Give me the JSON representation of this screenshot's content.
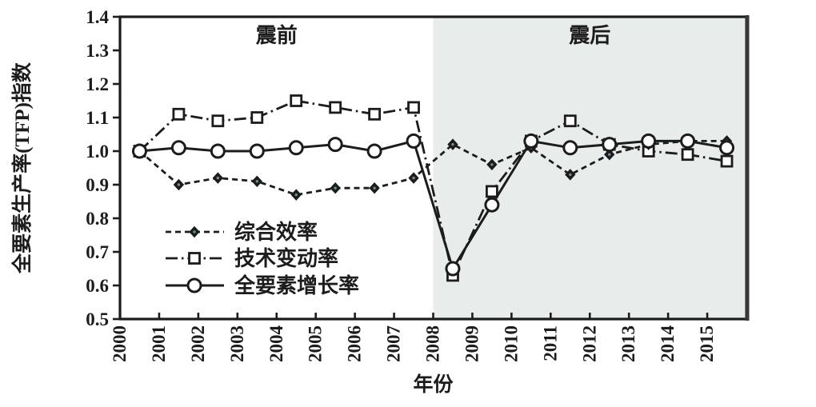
{
  "chart_data": {
    "type": "line",
    "xlabel": "年份",
    "ylabel": "全要素生产率(TFP)指数",
    "xlim": [
      2000,
      2016
    ],
    "ylim": [
      0.5,
      1.4
    ],
    "x_tick_labels": [
      "2000",
      "2001",
      "2002",
      "2003",
      "2004",
      "2005",
      "2006",
      "2007",
      "2008",
      "2009",
      "2010",
      "2011",
      "2012",
      "2013",
      "2014",
      "2015"
    ],
    "y_tick_labels": [
      "0.5",
      "0.6",
      "0.7",
      "0.8",
      "0.9",
      "1.0",
      "1.1",
      "1.2",
      "1.3",
      "1.4"
    ],
    "grid": false,
    "point_x_offset": 0.5,
    "categories": [
      "2000",
      "2001",
      "2002",
      "2003",
      "2004",
      "2005",
      "2006",
      "2007",
      "2008",
      "2009",
      "2010",
      "2011",
      "2012",
      "2013",
      "2014",
      "2015"
    ],
    "series": [
      {
        "name": "综合效率",
        "marker": "filled-diamond",
        "line_style": "dashed",
        "values": [
          1.0,
          0.9,
          0.92,
          0.91,
          0.87,
          0.89,
          0.89,
          0.92,
          1.02,
          0.96,
          1.01,
          0.93,
          0.99,
          1.02,
          1.03,
          1.03
        ]
      },
      {
        "name": "技术变动率",
        "marker": "open-square",
        "line_style": "dashdot",
        "values": [
          1.0,
          1.11,
          1.09,
          1.1,
          1.15,
          1.13,
          1.11,
          1.13,
          0.63,
          0.88,
          1.03,
          1.09,
          1.02,
          1.0,
          0.99,
          0.97
        ]
      },
      {
        "name": "全要素增长率",
        "marker": "open-circle",
        "line_style": "solid",
        "values": [
          1.0,
          1.01,
          1.0,
          1.0,
          1.01,
          1.02,
          1.0,
          1.03,
          0.65,
          0.84,
          1.03,
          1.01,
          1.02,
          1.03,
          1.03,
          1.01
        ]
      }
    ],
    "annotations": {
      "pre_region_label": "震前",
      "post_region_label": "震后",
      "divider_year": 2008
    },
    "shaded_region": {
      "from_year": 2008,
      "to_year": 2016,
      "color": "#e8edec"
    },
    "legend": {
      "position": "inside-lower-left",
      "entries": [
        "综合效率",
        "技术变动率",
        "全要素增长率"
      ]
    },
    "colors": {
      "stroke": "#1c1c1c",
      "background": "#ffffff",
      "shade": "#e8edec",
      "diamond_center": "#6f8f9b",
      "right_border": "#383838"
    }
  }
}
